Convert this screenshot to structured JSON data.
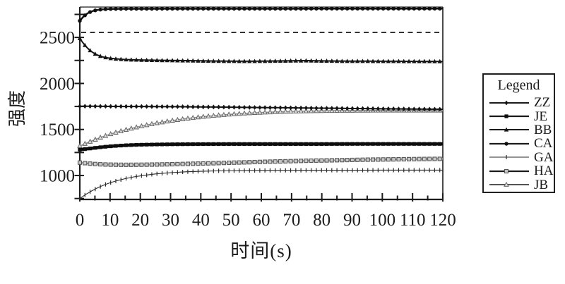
{
  "figure": {
    "background": "#ffffff",
    "text_color": "#1c1c1c"
  },
  "chart_data": {
    "type": "line",
    "title": "",
    "xlabel": "时间(s)",
    "ylabel": "强度",
    "xlim": [
      0,
      120
    ],
    "ylim": [
      740,
      2830
    ],
    "xticks_major": [
      0,
      10,
      20,
      30,
      40,
      50,
      60,
      70,
      80,
      90,
      100,
      110,
      120
    ],
    "xticks_minor_step": 5,
    "yticks_all": [
      750,
      1000,
      1250,
      1500,
      1750,
      2000,
      2250,
      2500,
      2750
    ],
    "yticks_labeled": [
      1000,
      1500,
      2000,
      2500
    ],
    "grid": false,
    "plot_border": "box",
    "reference_line": {
      "y": 2555,
      "style": "dashed",
      "color": "#222222"
    },
    "legend": {
      "title": "Legend",
      "position": "right-outside",
      "entries": [
        {
          "label": "ZZ",
          "marker": "diamond"
        },
        {
          "label": "JE",
          "marker": "square"
        },
        {
          "label": "BB",
          "marker": "triangle"
        },
        {
          "label": "CA",
          "marker": "circle"
        },
        {
          "label": "GA",
          "marker": "tick"
        },
        {
          "label": "HA",
          "marker": "square-open"
        },
        {
          "label": "JB",
          "marker": "triangle-open"
        }
      ]
    },
    "series": [
      {
        "name": "GA",
        "marker": "tick",
        "color": "#2a2a2a",
        "marker_color": "#2a2a2a",
        "line_width": 1.1,
        "points": [
          [
            0,
            750
          ],
          [
            2,
            795
          ],
          [
            4,
            834
          ],
          [
            6,
            868
          ],
          [
            8,
            897
          ],
          [
            10,
            921
          ],
          [
            12,
            941
          ],
          [
            15,
            966
          ],
          [
            18,
            986
          ],
          [
            21,
            1001
          ],
          [
            25,
            1017
          ],
          [
            30,
            1031
          ],
          [
            35,
            1040
          ],
          [
            40,
            1046
          ],
          [
            45,
            1050
          ],
          [
            50,
            1052
          ],
          [
            55,
            1054
          ],
          [
            60,
            1055
          ],
          [
            65,
            1056
          ],
          [
            70,
            1056
          ],
          [
            75,
            1057
          ],
          [
            80,
            1057
          ],
          [
            90,
            1057
          ],
          [
            100,
            1058
          ],
          [
            110,
            1058
          ],
          [
            120,
            1058
          ]
        ]
      },
      {
        "name": "HA",
        "marker": "square-open",
        "color": "#9a9a9a",
        "marker_color": "#555555",
        "line_width": 2.2,
        "points": [
          [
            0,
            1140
          ],
          [
            2,
            1133
          ],
          [
            4,
            1127
          ],
          [
            6,
            1123
          ],
          [
            8,
            1120
          ],
          [
            10,
            1118
          ],
          [
            12,
            1117
          ],
          [
            15,
            1116
          ],
          [
            20,
            1117
          ],
          [
            25,
            1119
          ],
          [
            30,
            1122
          ],
          [
            35,
            1126
          ],
          [
            40,
            1130
          ],
          [
            45,
            1134
          ],
          [
            50,
            1139
          ],
          [
            55,
            1143
          ],
          [
            60,
            1148
          ],
          [
            65,
            1152
          ],
          [
            70,
            1156
          ],
          [
            75,
            1160
          ],
          [
            80,
            1163
          ],
          [
            85,
            1166
          ],
          [
            90,
            1169
          ],
          [
            95,
            1172
          ],
          [
            100,
            1174
          ],
          [
            105,
            1176
          ],
          [
            110,
            1178
          ],
          [
            115,
            1180
          ],
          [
            120,
            1181
          ]
        ]
      },
      {
        "name": "JB",
        "marker": "triangle-open",
        "color": "#8e8e8e",
        "marker_color": "#666666",
        "line_width": 1.6,
        "points": [
          [
            0,
            1320
          ],
          [
            2,
            1349
          ],
          [
            4,
            1376
          ],
          [
            6,
            1402
          ],
          [
            8,
            1426
          ],
          [
            10,
            1448
          ],
          [
            12,
            1468
          ],
          [
            15,
            1495
          ],
          [
            18,
            1519
          ],
          [
            21,
            1541
          ],
          [
            25,
            1567
          ],
          [
            30,
            1594
          ],
          [
            35,
            1617
          ],
          [
            40,
            1636
          ],
          [
            45,
            1652
          ],
          [
            50,
            1665
          ],
          [
            55,
            1676
          ],
          [
            60,
            1684
          ],
          [
            65,
            1691
          ],
          [
            70,
            1696
          ],
          [
            75,
            1699
          ],
          [
            80,
            1702
          ],
          [
            85,
            1704
          ],
          [
            90,
            1705
          ],
          [
            95,
            1706
          ],
          [
            100,
            1707
          ],
          [
            110,
            1707
          ],
          [
            120,
            1707
          ]
        ]
      },
      {
        "name": "JE",
        "marker": "square",
        "color": "#0d0d0d",
        "marker_color": "#0d0d0d",
        "line_width": 4.5,
        "points": [
          [
            0,
            1280
          ],
          [
            2,
            1288
          ],
          [
            4,
            1296
          ],
          [
            6,
            1304
          ],
          [
            8,
            1311
          ],
          [
            10,
            1317
          ],
          [
            12,
            1322
          ],
          [
            15,
            1328
          ],
          [
            18,
            1332
          ],
          [
            20,
            1334
          ],
          [
            25,
            1337
          ],
          [
            30,
            1339
          ],
          [
            35,
            1340
          ],
          [
            40,
            1341
          ],
          [
            50,
            1342
          ],
          [
            60,
            1342
          ],
          [
            70,
            1342
          ],
          [
            80,
            1342
          ],
          [
            90,
            1343
          ],
          [
            100,
            1343
          ],
          [
            110,
            1343
          ],
          [
            120,
            1343
          ]
        ]
      },
      {
        "name": "ZZ",
        "marker": "diamond",
        "color": "#141414",
        "marker_color": "#141414",
        "line_width": 2,
        "points": [
          [
            0,
            1752
          ],
          [
            5,
            1752
          ],
          [
            10,
            1751
          ],
          [
            15,
            1750
          ],
          [
            20,
            1750
          ],
          [
            25,
            1749
          ],
          [
            30,
            1748
          ],
          [
            35,
            1747
          ],
          [
            40,
            1745
          ],
          [
            45,
            1744
          ],
          [
            50,
            1742
          ],
          [
            55,
            1740
          ],
          [
            60,
            1738
          ],
          [
            65,
            1737
          ],
          [
            70,
            1735
          ],
          [
            75,
            1733
          ],
          [
            80,
            1731
          ],
          [
            85,
            1730
          ],
          [
            90,
            1728
          ],
          [
            95,
            1727
          ],
          [
            100,
            1725
          ],
          [
            105,
            1724
          ],
          [
            110,
            1722
          ],
          [
            115,
            1721
          ],
          [
            120,
            1720
          ]
        ]
      },
      {
        "name": "BB",
        "marker": "triangle",
        "color": "#161616",
        "marker_color": "#161616",
        "line_width": 2,
        "points": [
          [
            0,
            2490
          ],
          [
            1,
            2443
          ],
          [
            2,
            2403
          ],
          [
            3,
            2370
          ],
          [
            4,
            2343
          ],
          [
            5,
            2322
          ],
          [
            6,
            2306
          ],
          [
            7,
            2294
          ],
          [
            8,
            2285
          ],
          [
            9,
            2279
          ],
          [
            10,
            2274
          ],
          [
            12,
            2267
          ],
          [
            15,
            2260
          ],
          [
            18,
            2257
          ],
          [
            20,
            2255
          ],
          [
            25,
            2252
          ],
          [
            30,
            2250
          ],
          [
            35,
            2248
          ],
          [
            40,
            2246
          ],
          [
            45,
            2243
          ],
          [
            50,
            2242
          ],
          [
            55,
            2241
          ],
          [
            60,
            2242
          ],
          [
            65,
            2244
          ],
          [
            70,
            2246
          ],
          [
            75,
            2248
          ],
          [
            80,
            2245
          ],
          [
            85,
            2243
          ],
          [
            90,
            2242
          ],
          [
            95,
            2242
          ],
          [
            100,
            2241
          ],
          [
            105,
            2241
          ],
          [
            110,
            2240
          ],
          [
            115,
            2240
          ],
          [
            120,
            2239
          ]
        ]
      },
      {
        "name": "CA",
        "marker": "circle",
        "color": "#101010",
        "marker_color": "#101010",
        "line_width": 2.5,
        "points": [
          [
            0,
            2680
          ],
          [
            1,
            2719
          ],
          [
            2,
            2749
          ],
          [
            3,
            2770
          ],
          [
            4,
            2784
          ],
          [
            5,
            2793
          ],
          [
            6,
            2799
          ],
          [
            7,
            2803
          ],
          [
            8,
            2806
          ],
          [
            10,
            2809
          ],
          [
            12,
            2810
          ],
          [
            15,
            2811
          ],
          [
            20,
            2811
          ],
          [
            30,
            2812
          ],
          [
            40,
            2812
          ],
          [
            50,
            2812
          ],
          [
            60,
            2812
          ],
          [
            70,
            2812
          ],
          [
            80,
            2813
          ],
          [
            90,
            2813
          ],
          [
            100,
            2813
          ],
          [
            110,
            2813
          ],
          [
            120,
            2813
          ]
        ]
      }
    ]
  }
}
